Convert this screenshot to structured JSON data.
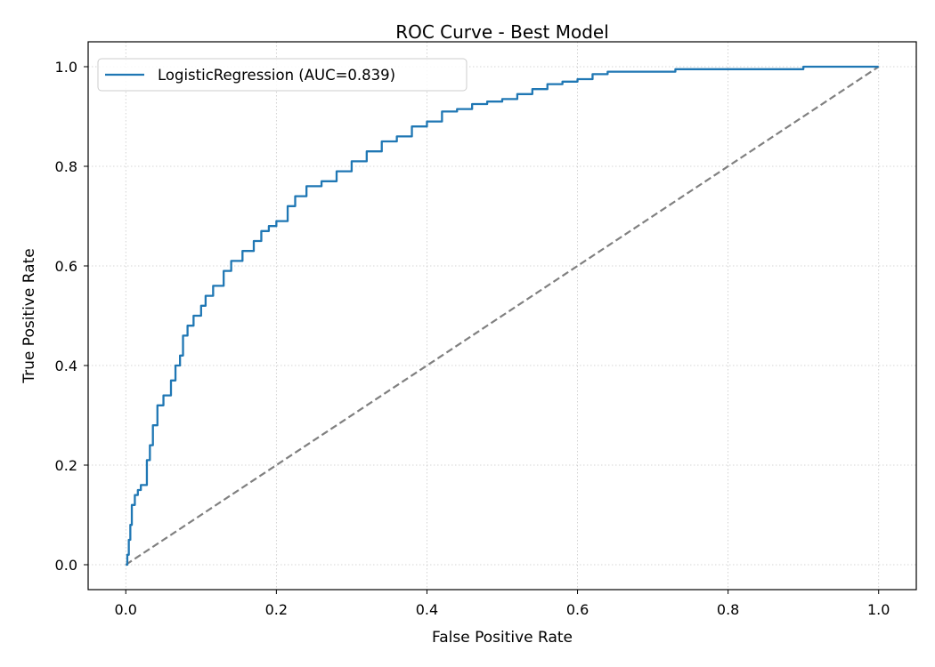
{
  "chart_data": {
    "type": "line",
    "title": "ROC Curve - Best Model",
    "xlabel": "False Positive Rate",
    "ylabel": "True Positive Rate",
    "xlim": [
      -0.05,
      1.05
    ],
    "ylim": [
      -0.05,
      1.05
    ],
    "xticks": [
      "0.0",
      "0.2",
      "0.4",
      "0.6",
      "0.8",
      "1.0"
    ],
    "yticks": [
      "0.0",
      "0.2",
      "0.4",
      "0.6",
      "0.8",
      "1.0"
    ],
    "grid": true,
    "legend_position": "top-left",
    "series": [
      {
        "name": "LogisticRegression (AUC=0.839)",
        "color": "#1f77b4",
        "x": [
          0.0,
          0.002,
          0.004,
          0.006,
          0.008,
          0.012,
          0.016,
          0.02,
          0.026,
          0.028,
          0.032,
          0.036,
          0.042,
          0.05,
          0.06,
          0.066,
          0.072,
          0.076,
          0.082,
          0.09,
          0.1,
          0.106,
          0.116,
          0.13,
          0.14,
          0.155,
          0.17,
          0.18,
          0.19,
          0.2,
          0.215,
          0.225,
          0.24,
          0.26,
          0.28,
          0.3,
          0.32,
          0.34,
          0.36,
          0.38,
          0.4,
          0.42,
          0.44,
          0.46,
          0.48,
          0.5,
          0.52,
          0.54,
          0.56,
          0.58,
          0.6,
          0.62,
          0.64,
          0.7,
          0.73,
          0.87,
          0.9,
          0.95,
          1.0
        ],
        "y": [
          0.0,
          0.02,
          0.05,
          0.08,
          0.12,
          0.14,
          0.15,
          0.16,
          0.16,
          0.21,
          0.24,
          0.28,
          0.32,
          0.34,
          0.37,
          0.4,
          0.42,
          0.46,
          0.48,
          0.5,
          0.52,
          0.54,
          0.56,
          0.59,
          0.61,
          0.63,
          0.65,
          0.67,
          0.68,
          0.69,
          0.72,
          0.74,
          0.76,
          0.77,
          0.79,
          0.81,
          0.83,
          0.85,
          0.86,
          0.88,
          0.89,
          0.91,
          0.915,
          0.925,
          0.93,
          0.935,
          0.945,
          0.955,
          0.965,
          0.97,
          0.975,
          0.985,
          0.99,
          0.99,
          0.995,
          0.995,
          1.0,
          1.0,
          1.0
        ]
      },
      {
        "name": "",
        "color": "#808080",
        "dashed": true,
        "x": [
          0.0,
          1.0
        ],
        "y": [
          0.0,
          1.0
        ]
      }
    ]
  }
}
